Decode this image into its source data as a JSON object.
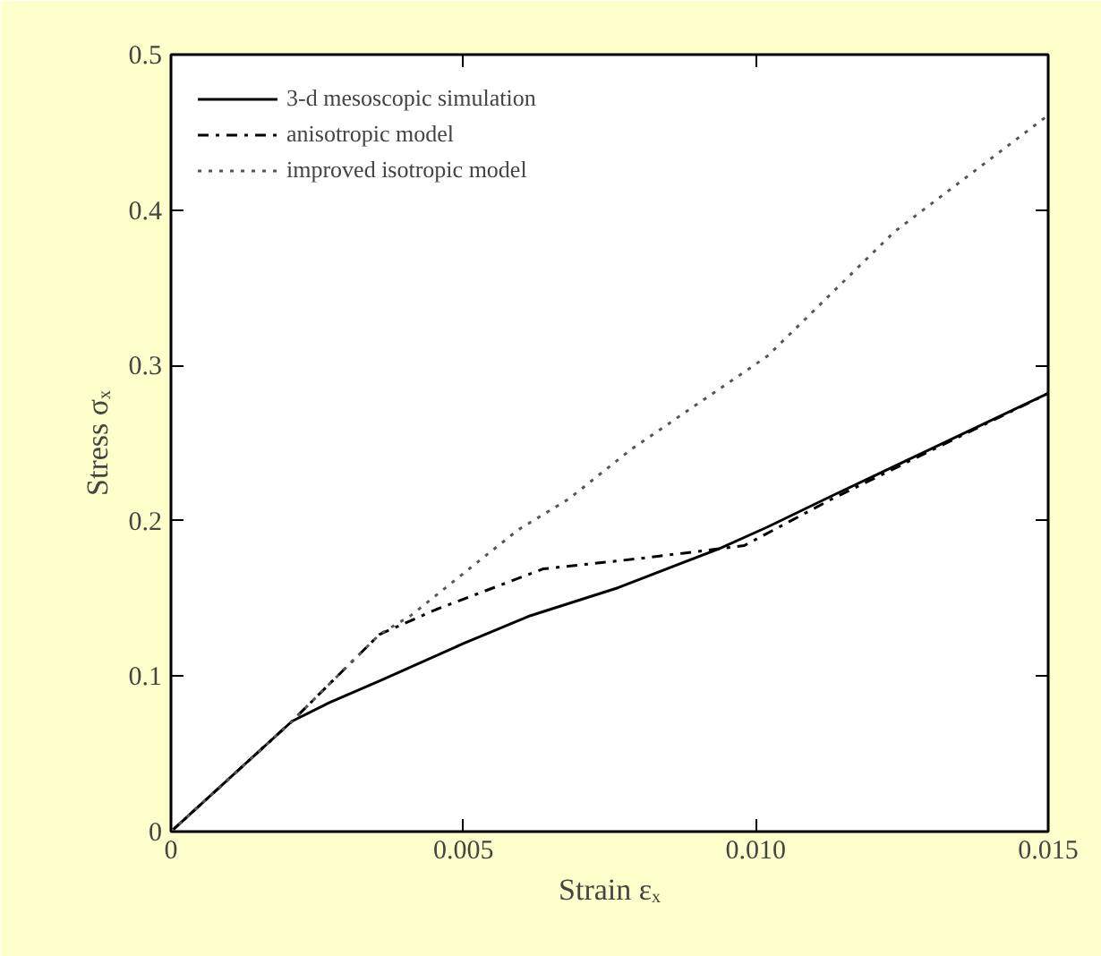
{
  "chart_data": {
    "type": "line",
    "xlabel": "Strain εₓ",
    "ylabel": "Stress σₓ",
    "xlim": [
      0,
      0.015
    ],
    "ylim": [
      0,
      0.5
    ],
    "xticks": [
      0,
      0.005,
      {
        "value": 0.01,
        "label": "0.010"
      },
      0.015
    ],
    "yticks": [
      0,
      0.1,
      0.2,
      0.3,
      0.4,
      0.5
    ],
    "grid": false,
    "legend": "top left",
    "marker": "none",
    "series": [
      {
        "name": "3-d mesoscopic simulation",
        "color": "#000000",
        "line_style": "solid",
        "x": [
          0,
          0.00207,
          0.00271,
          0.00357,
          0.005,
          0.00615,
          0.00765,
          0.00937,
          0.0102,
          0.0113,
          0.015
        ],
        "values": [
          0,
          0.071,
          0.083,
          0.097,
          0.121,
          0.139,
          0.157,
          0.182,
          0.196,
          0.216,
          0.282
        ]
      },
      {
        "name": "anisotropic model",
        "color": "#000000",
        "line_style": "dashdot",
        "x": [
          0,
          0.00207,
          0.00271,
          0.00357,
          0.00454,
          0.00636,
          0.00808,
          0.00937,
          0.0098,
          0.0113,
          0.015
        ],
        "values": [
          0,
          0.071,
          0.095,
          0.127,
          0.143,
          0.169,
          0.176,
          0.182,
          0.184,
          0.214,
          0.282
        ]
      },
      {
        "name": "improved isotropic model",
        "color": "#555555",
        "line_style": "dotted",
        "x": [
          0,
          0.00207,
          0.00271,
          0.00357,
          0.0041,
          0.00593,
          0.0068,
          0.00787,
          0.0102,
          0.01237,
          0.015
        ],
        "values": [
          0,
          0.071,
          0.095,
          0.127,
          0.139,
          0.194,
          0.214,
          0.246,
          0.306,
          0.386,
          0.461
        ]
      }
    ]
  }
}
